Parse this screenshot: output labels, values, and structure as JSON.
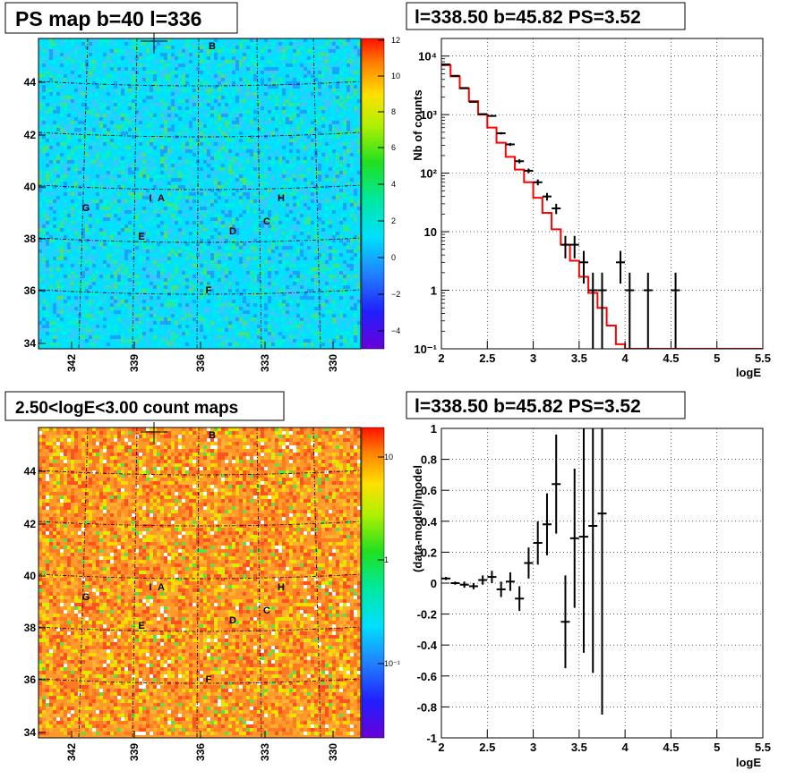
{
  "colors": {
    "map_bg": "#00e0ff",
    "count_bg": "#ff9a2a",
    "model_line": "#ff0000",
    "data_points": "#000000",
    "grid": "#000000"
  },
  "map_axes": {
    "y_ticks": [
      "34",
      "36",
      "38",
      "40",
      "42",
      "44"
    ],
    "x_ticks": [
      "342",
      "339",
      "336",
      "333",
      "330"
    ]
  },
  "source_labels": [
    "A",
    "B",
    "C",
    "D",
    "E",
    "F",
    "G",
    "H",
    "I"
  ],
  "panels": {
    "top_left": {
      "title": "PS map b=40 l=336",
      "colorbar_ticks": [
        "12",
        "10",
        "8",
        "6",
        "4",
        "2",
        "0",
        "−2",
        "−4"
      ]
    },
    "top_right": {
      "title": "l=338.50 b=45.82 PS=3.52"
    },
    "bottom_left": {
      "title": "2.50<logE<3.00 count maps",
      "colorbar_ticks": [
        "10",
        "1",
        "10⁻¹"
      ]
    },
    "bottom_right": {
      "title": "l=338.50 b=45.82 PS=3.52"
    }
  },
  "chart_data": [
    {
      "type": "heatmap",
      "title": "PS map b=40 l=336",
      "xlabel": "",
      "ylabel": "",
      "x_ticks": [
        342,
        339,
        336,
        333,
        330
      ],
      "y_ticks": [
        34,
        36,
        38,
        40,
        42,
        44
      ],
      "colorbar_range": [
        -5,
        12
      ],
      "colorbar_ticks": [
        -4,
        -2,
        0,
        2,
        4,
        6,
        8,
        10,
        12
      ],
      "dominant_value": 0,
      "grid": true,
      "sources": [
        "A",
        "B",
        "C",
        "D",
        "E",
        "F",
        "G",
        "H",
        "I"
      ]
    },
    {
      "type": "line",
      "title": "l=338.50 b=45.82 PS=3.52",
      "xlabel": "logE",
      "ylabel": "Nb of counts",
      "xlim": [
        2,
        5.5
      ],
      "ylim": [
        0.1,
        20000
      ],
      "yscale": "log",
      "grid": true,
      "x_ticks": [
        2,
        2.5,
        3,
        3.5,
        4,
        4.5,
        5,
        5.5
      ],
      "y_ticks": [
        "10⁻¹",
        "1",
        "10",
        "10²",
        "10³",
        "10⁴"
      ],
      "series": [
        {
          "kind": "step",
          "bin_edges": [
            2.0,
            2.1,
            2.2,
            2.3,
            2.4,
            2.5,
            2.6,
            2.7,
            2.8,
            2.9,
            3.0,
            3.1,
            3.2,
            3.3,
            3.4,
            3.5,
            3.6,
            3.7,
            3.8,
            3.9,
            4.0,
            4.1,
            4.2,
            4.3,
            4.4,
            4.5,
            4.6,
            4.7,
            4.8,
            4.9,
            5.0,
            5.1,
            5.2,
            5.3,
            5.4,
            5.5
          ],
          "values": [
            7000,
            4500,
            2800,
            1700,
            1000,
            600,
            330,
            190,
            115,
            70,
            38,
            21,
            11,
            6,
            3.2,
            1.7,
            0.9,
            0.5,
            0.25,
            0.12,
            0.1,
            0.1,
            0.1,
            0.1,
            0.1,
            0.1,
            0.1,
            0.1,
            0.1,
            0.1,
            0.1,
            0.1,
            0.1,
            0.1,
            0.1
          ]
        },
        {
          "kind": "errorbar",
          "x": [
            2.05,
            2.15,
            2.25,
            2.35,
            2.45,
            2.55,
            2.65,
            2.75,
            2.85,
            2.95,
            3.05,
            3.15,
            3.25,
            3.35,
            3.45,
            3.55,
            3.65,
            3.75,
            3.95,
            4.05,
            4.25,
            4.55
          ],
          "y": [
            7200,
            4600,
            2850,
            1650,
            1020,
            950,
            480,
            310,
            160,
            110,
            70,
            40,
            25,
            6,
            6,
            3,
            1,
            1,
            3,
            1,
            1,
            1
          ],
          "yerr_low": [
            85,
            68,
            53,
            41,
            32,
            31,
            22,
            18,
            13,
            10,
            8,
            6,
            5,
            2.5,
            2.5,
            1.7,
            0.9,
            0.9,
            1.7,
            0.9,
            0.9,
            0.9
          ],
          "yerr_high": [
            85,
            68,
            53,
            41,
            32,
            31,
            22,
            18,
            13,
            10,
            8,
            6,
            5,
            2.5,
            2.5,
            1.7,
            1,
            1,
            1.7,
            1,
            1,
            1
          ]
        }
      ]
    },
    {
      "type": "heatmap",
      "title": "2.50<logE<3.00 count maps",
      "xlabel": "",
      "ylabel": "",
      "x_ticks": [
        342,
        339,
        336,
        333,
        330
      ],
      "y_ticks": [
        34,
        36,
        38,
        40,
        42,
        44
      ],
      "colorbar_scale": "log",
      "colorbar_range": [
        0.03,
        20
      ],
      "colorbar_ticks": [
        "10",
        "1",
        "10⁻¹"
      ],
      "dominant_value": 5,
      "grid": true,
      "sources": [
        "A",
        "B",
        "C",
        "D",
        "E",
        "F",
        "G",
        "H",
        "I"
      ]
    },
    {
      "type": "scatter",
      "title": "l=338.50 b=45.82 PS=3.52",
      "xlabel": "logE",
      "ylabel": "(data-model)/model",
      "xlim": [
        2,
        5.5
      ],
      "ylim": [
        -1,
        1
      ],
      "grid": true,
      "x_ticks": [
        2,
        2.5,
        3,
        3.5,
        4,
        4.5,
        5,
        5.5
      ],
      "y_ticks": [
        -1,
        -0.8,
        -0.6,
        -0.4,
        -0.2,
        0,
        0.2,
        0.4,
        0.6,
        0.8,
        1
      ],
      "series": [
        {
          "kind": "errorbar",
          "x": [
            2.05,
            2.15,
            2.25,
            2.35,
            2.45,
            2.55,
            2.65,
            2.75,
            2.85,
            2.95,
            3.05,
            3.15,
            3.25,
            3.35,
            3.45,
            3.55,
            3.65,
            3.75
          ],
          "y": [
            0.03,
            0.0,
            -0.01,
            -0.02,
            0.02,
            0.04,
            -0.04,
            0.01,
            -0.1,
            0.13,
            0.26,
            0.38,
            0.64,
            -0.25,
            0.29,
            0.3,
            0.37,
            0.45
          ],
          "yerr": [
            0.01,
            0.01,
            0.02,
            0.02,
            0.03,
            0.04,
            0.05,
            0.06,
            0.08,
            0.1,
            0.14,
            0.2,
            0.32,
            0.3,
            0.45,
            0.75,
            0.95,
            1.3
          ]
        }
      ]
    }
  ]
}
